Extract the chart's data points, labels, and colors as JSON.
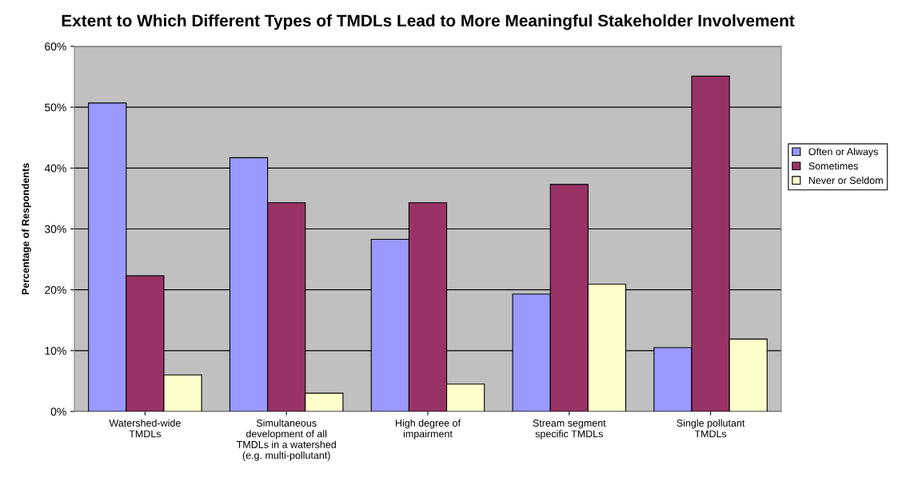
{
  "chart_data": {
    "type": "bar",
    "title": "Extent to Which Different Types of TMDLs Lead to More Meaningful Stakeholder Involvement",
    "ylabel": "Percentage of Respondents",
    "categories": [
      "Watershed-wide\nTMDLs",
      "Simultaneous\ndevelopment of all\nTMDLs in a watershed\n(e.g. multi-pollutant)",
      "High degree of\nimpairment",
      "Stream segment\nspecific TMDLs",
      "Single pollutant\nTMDLs"
    ],
    "series": [
      {
        "name": "Often or Always",
        "color": "#9999ff",
        "values": [
          50.7,
          41.7,
          28.3,
          19.3,
          10.5
        ]
      },
      {
        "name": "Sometimes",
        "color": "#993366",
        "values": [
          22.3,
          34.3,
          34.3,
          37.3,
          55.1
        ]
      },
      {
        "name": "Never or Seldom",
        "color": "#ffffcc",
        "values": [
          6.0,
          3.0,
          4.5,
          20.9,
          11.9
        ]
      }
    ],
    "ylim": [
      0,
      60
    ],
    "yticks": [
      {
        "value": 0,
        "label": "0%"
      },
      {
        "value": 10,
        "label": "10%"
      },
      {
        "value": 20,
        "label": "20%"
      },
      {
        "value": 30,
        "label": "30%"
      },
      {
        "value": 40,
        "label": "40%"
      },
      {
        "value": 50,
        "label": "50%"
      },
      {
        "value": 60,
        "label": "60%"
      }
    ],
    "grid": "y",
    "legend": "right"
  }
}
